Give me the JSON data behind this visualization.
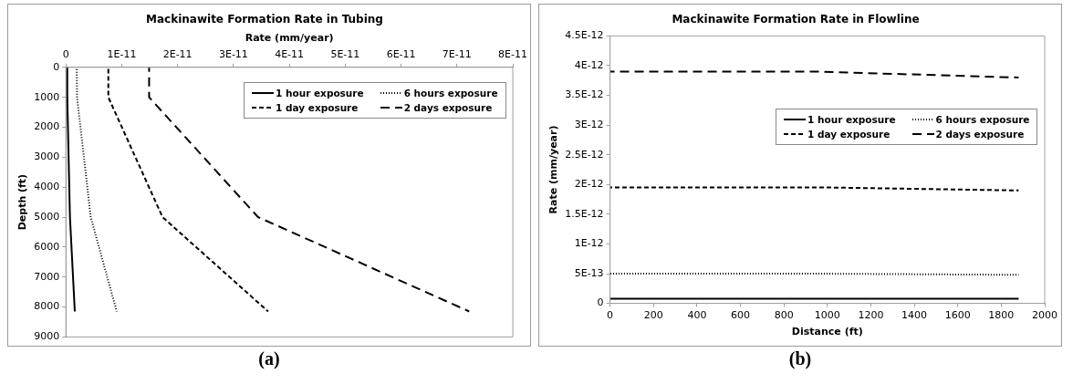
{
  "chart_data": [
    {
      "type": "line",
      "title": "Mackinawite Formation Rate in Tubing",
      "xlabel": "Rate (mm/year)",
      "ylabel": "Depth (ft)",
      "annotations": [
        "(a)"
      ],
      "xlim": [
        0,
        8e-11
      ],
      "xticks": [
        0,
        {
          "value": 1e-11,
          "label": "1E-11"
        },
        {
          "value": 2e-11,
          "label": "2E-11"
        },
        {
          "value": 3e-11,
          "label": "3E-11"
        },
        {
          "value": 4e-11,
          "label": "4E-11"
        },
        {
          "value": 5e-11,
          "label": "5E-11"
        },
        {
          "value": 6e-11,
          "label": "6E-11"
        },
        {
          "value": 7e-11,
          "label": "7E-11"
        },
        {
          "value": 8e-11,
          "label": "8E-11"
        }
      ],
      "ylim": [
        9000,
        0
      ],
      "yticks": [
        0,
        1000,
        2000,
        3000,
        4000,
        5000,
        6000,
        7000,
        8000,
        9000
      ],
      "grid": false,
      "legend": "top right",
      "marker": "none",
      "series": [
        {
          "name": "1 hour exposure",
          "color": "#000000",
          "line_style": "solid",
          "x": [
            2.4e-13,
            2.5e-13,
            7.3e-13,
            1.6e-12
          ],
          "values": [
            0,
            1000,
            5000,
            8150
          ]
        },
        {
          "name": "6 hours exposure",
          "color": "#000000",
          "line_style": "dotted",
          "x": [
            1.95e-12,
            2e-12,
            4.45e-12,
            9.1e-12
          ],
          "values": [
            0,
            1000,
            5000,
            8150
          ]
        },
        {
          "name": "1 day exposure",
          "color": "#000000",
          "line_style": "dashed",
          "x": [
            7.6e-12,
            7.6e-12,
            1.73e-11,
            3.62e-11
          ],
          "values": [
            0,
            1000,
            5000,
            8150
          ]
        },
        {
          "name": "2 days exposure",
          "color": "#000000",
          "line_style": "dashed",
          "x": [
            1.49e-11,
            1.49e-11,
            3.44e-11,
            7.22e-11
          ],
          "values": [
            0,
            1000,
            5000,
            8150
          ]
        }
      ]
    },
    {
      "type": "line",
      "title": "Mackinawite Formation Rate in Flowline",
      "xlabel": "Distance (ft)",
      "ylabel": "Rate (mm/year)",
      "annotations": [
        "(b)"
      ],
      "xlim": [
        0,
        2000
      ],
      "xticks": [
        0,
        200,
        400,
        600,
        800,
        1000,
        1200,
        1400,
        1600,
        1800,
        2000
      ],
      "ylim": [
        0,
        4.5e-12
      ],
      "yticks": [
        0,
        {
          "value": 5e-13,
          "label": "5E-13"
        },
        {
          "value": 1e-12,
          "label": "1E-12"
        },
        {
          "value": 1.5e-12,
          "label": "1.5E-12"
        },
        {
          "value": 2e-12,
          "label": "2E-12"
        },
        {
          "value": 2.5e-12,
          "label": "2.5E-12"
        },
        {
          "value": 3e-12,
          "label": "3E-12"
        },
        {
          "value": 3.5e-12,
          "label": "3.5E-12"
        },
        {
          "value": 4e-12,
          "label": "4E-12"
        },
        {
          "value": 4.5e-12,
          "label": "4.5E-12"
        }
      ],
      "grid": false,
      "legend": "right",
      "marker": "none",
      "series": [
        {
          "name": "1 hour exposure",
          "color": "#000000",
          "line_style": "solid",
          "x": [
            0,
            950,
            1880
          ],
          "values": [
            8e-14,
            8e-14,
            8e-14
          ]
        },
        {
          "name": "6 hours exposure",
          "color": "#000000",
          "line_style": "dotted",
          "x": [
            0,
            950,
            1880
          ],
          "values": [
            5e-13,
            5e-13,
            4.8e-13
          ]
        },
        {
          "name": "1 day exposure",
          "color": "#000000",
          "line_style": "dashed",
          "x": [
            0,
            1000,
            1880
          ],
          "values": [
            1.95e-12,
            1.95e-12,
            1.9e-12
          ]
        },
        {
          "name": "2 days exposure",
          "color": "#000000",
          "line_style": "dashed",
          "x": [
            0,
            950,
            1880
          ],
          "values": [
            3.9e-12,
            3.9e-12,
            3.8e-12
          ]
        }
      ]
    }
  ]
}
